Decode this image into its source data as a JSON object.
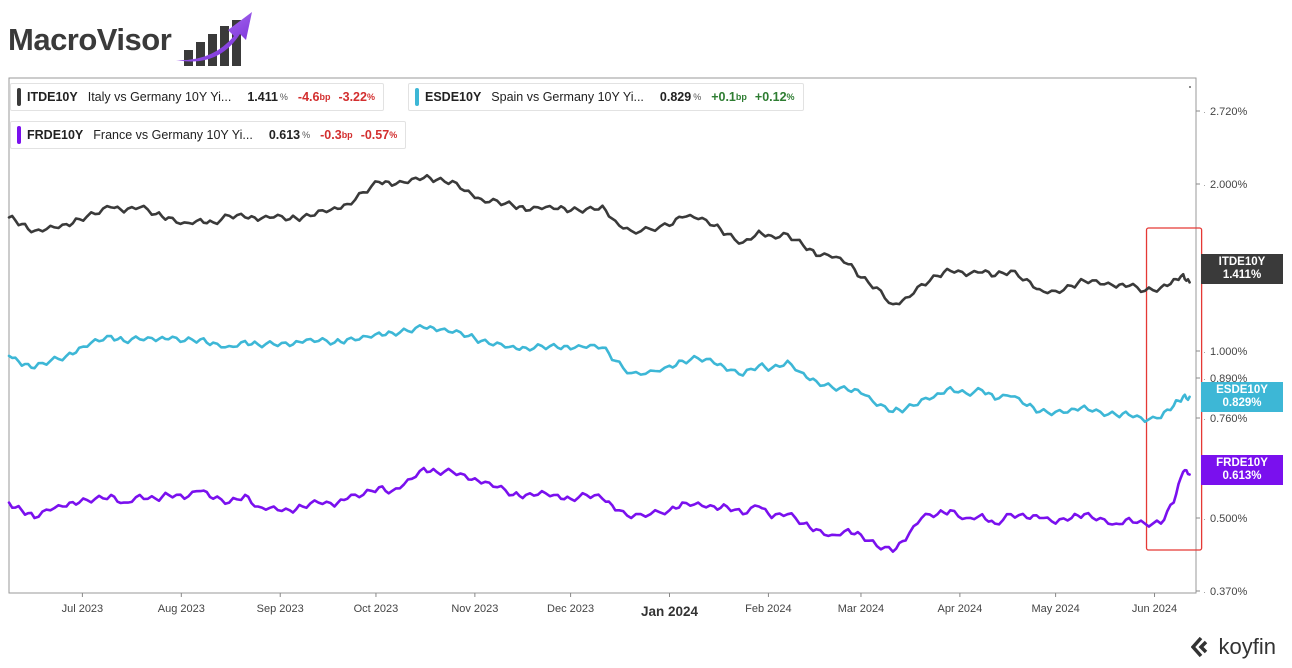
{
  "brand": {
    "name": "MacroVisor",
    "footer": "koyfin"
  },
  "colors": {
    "italy": "#3a3a3a",
    "spain": "#3db7d6",
    "france": "#7a10ee",
    "highlight": "#e53935"
  },
  "legend": [
    {
      "ticker": "ITDE10Y",
      "name": "Italy vs Germany 10Y Yi...",
      "value": "1.411",
      "unit": "%",
      "chg_bp": "-4.6",
      "bp_unit": "bp",
      "chg_pct": "-3.22",
      "pct_unit": "%",
      "direction": "neg"
    },
    {
      "ticker": "ESDE10Y",
      "name": "Spain vs Germany 10Y Yi...",
      "value": "0.829",
      "unit": "%",
      "chg_bp": "+0.1",
      "bp_unit": "bp",
      "chg_pct": "+0.12",
      "pct_unit": "%",
      "direction": "pos"
    },
    {
      "ticker": "FRDE10Y",
      "name": "France vs Germany 10Y Yi...",
      "value": "0.613",
      "unit": "%",
      "chg_bp": "-0.3",
      "bp_unit": "bp",
      "chg_pct": "-0.57",
      "pct_unit": "%",
      "direction": "neg"
    }
  ],
  "tags": [
    {
      "ticker": "ITDE10Y",
      "value": "1.411%"
    },
    {
      "ticker": "ESDE10Y",
      "value": "0.829%"
    },
    {
      "ticker": "FRDE10Y",
      "value": "0.613%"
    }
  ],
  "chart_data": {
    "type": "line",
    "x_ticks": [
      "Jul 2023",
      "Aug 2023",
      "Sep 2023",
      "Oct 2023",
      "Nov 2023",
      "Dec 2023",
      "Jan 2024",
      "Feb 2024",
      "Mar 2024",
      "Apr 2024",
      "May 2024",
      "Jun 2024"
    ],
    "y_ticks": [
      "2.720%",
      "2.000%",
      "1.000%",
      "0.890%",
      "0.760%",
      "0.500%",
      "0.370%"
    ],
    "y_tick_values": [
      2.72,
      2.0,
      1.0,
      0.89,
      0.76,
      0.5,
      0.37
    ],
    "x_range": [
      "2023-06-08",
      "2024-06-14"
    ],
    "grid": false,
    "legend_position": "top-left",
    "highlight_range": [
      "2024-06-01",
      "2024-06-12"
    ],
    "series": [
      {
        "name": "ITDE10Y",
        "points": [
          [
            "2023-06-08",
            1.8
          ],
          [
            "2023-06-12",
            1.76
          ],
          [
            "2023-06-16",
            1.72
          ],
          [
            "2023-06-21",
            1.75
          ],
          [
            "2023-06-26",
            1.76
          ],
          [
            "2023-06-30",
            1.79
          ],
          [
            "2023-07-05",
            1.82
          ],
          [
            "2023-07-10",
            1.86
          ],
          [
            "2023-07-14",
            1.83
          ],
          [
            "2023-07-19",
            1.86
          ],
          [
            "2023-07-24",
            1.82
          ],
          [
            "2023-07-28",
            1.8
          ],
          [
            "2023-08-02",
            1.77
          ],
          [
            "2023-08-07",
            1.79
          ],
          [
            "2023-08-11",
            1.77
          ],
          [
            "2023-08-16",
            1.81
          ],
          [
            "2023-08-21",
            1.8
          ],
          [
            "2023-08-25",
            1.78
          ],
          [
            "2023-08-30",
            1.8
          ],
          [
            "2023-09-04",
            1.79
          ],
          [
            "2023-09-08",
            1.8
          ],
          [
            "2023-09-13",
            1.84
          ],
          [
            "2023-09-18",
            1.86
          ],
          [
            "2023-09-22",
            1.88
          ],
          [
            "2023-09-27",
            1.95
          ],
          [
            "2023-10-02",
            2.02
          ],
          [
            "2023-10-06",
            1.99
          ],
          [
            "2023-10-11",
            2.01
          ],
          [
            "2023-10-16",
            2.06
          ],
          [
            "2023-10-20",
            2.04
          ],
          [
            "2023-10-25",
            2.03
          ],
          [
            "2023-10-30",
            1.96
          ],
          [
            "2023-11-03",
            1.91
          ],
          [
            "2023-11-08",
            1.9
          ],
          [
            "2023-11-13",
            1.87
          ],
          [
            "2023-11-17",
            1.84
          ],
          [
            "2023-11-22",
            1.85
          ],
          [
            "2023-11-27",
            1.85
          ],
          [
            "2023-12-01",
            1.84
          ],
          [
            "2023-12-06",
            1.85
          ],
          [
            "2023-12-11",
            1.87
          ],
          [
            "2023-12-15",
            1.78
          ],
          [
            "2023-12-20",
            1.72
          ],
          [
            "2023-12-26",
            1.73
          ],
          [
            "2024-01-01",
            1.75
          ],
          [
            "2024-01-05",
            1.8
          ],
          [
            "2024-01-10",
            1.79
          ],
          [
            "2024-01-15",
            1.75
          ],
          [
            "2024-01-19",
            1.7
          ],
          [
            "2024-01-24",
            1.65
          ],
          [
            "2024-01-29",
            1.72
          ],
          [
            "2024-02-02",
            1.69
          ],
          [
            "2024-02-07",
            1.7
          ],
          [
            "2024-02-12",
            1.63
          ],
          [
            "2024-02-16",
            1.57
          ],
          [
            "2024-02-21",
            1.56
          ],
          [
            "2024-02-26",
            1.52
          ],
          [
            "2024-03-01",
            1.44
          ],
          [
            "2024-03-06",
            1.38
          ],
          [
            "2024-03-11",
            1.28
          ],
          [
            "2024-03-15",
            1.32
          ],
          [
            "2024-03-20",
            1.4
          ],
          [
            "2024-03-25",
            1.45
          ],
          [
            "2024-03-29",
            1.48
          ],
          [
            "2024-04-03",
            1.45
          ],
          [
            "2024-04-08",
            1.47
          ],
          [
            "2024-04-12",
            1.45
          ],
          [
            "2024-04-17",
            1.48
          ],
          [
            "2024-04-22",
            1.43
          ],
          [
            "2024-04-26",
            1.37
          ],
          [
            "2024-05-01",
            1.36
          ],
          [
            "2024-05-06",
            1.39
          ],
          [
            "2024-05-10",
            1.42
          ],
          [
            "2024-05-15",
            1.4
          ],
          [
            "2024-05-20",
            1.38
          ],
          [
            "2024-05-24",
            1.39
          ],
          [
            "2024-05-29",
            1.36
          ],
          [
            "2024-06-03",
            1.38
          ],
          [
            "2024-06-07",
            1.43
          ],
          [
            "2024-06-10",
            1.46
          ],
          [
            "2024-06-12",
            1.411
          ]
        ]
      },
      {
        "name": "ESDE10Y",
        "points": [
          [
            "2023-06-08",
            0.98
          ],
          [
            "2023-06-12",
            0.94
          ],
          [
            "2023-06-16",
            0.93
          ],
          [
            "2023-06-21",
            0.96
          ],
          [
            "2023-06-26",
            0.98
          ],
          [
            "2023-06-30",
            1.02
          ],
          [
            "2023-07-05",
            1.07
          ],
          [
            "2023-07-10",
            1.09
          ],
          [
            "2023-07-14",
            1.06
          ],
          [
            "2023-07-19",
            1.07
          ],
          [
            "2023-07-24",
            1.06
          ],
          [
            "2023-07-28",
            1.07
          ],
          [
            "2023-08-02",
            1.06
          ],
          [
            "2023-08-07",
            1.07
          ],
          [
            "2023-08-11",
            1.05
          ],
          [
            "2023-08-16",
            1.03
          ],
          [
            "2023-08-21",
            1.06
          ],
          [
            "2023-08-25",
            1.04
          ],
          [
            "2023-08-30",
            1.04
          ],
          [
            "2023-09-04",
            1.03
          ],
          [
            "2023-09-08",
            1.05
          ],
          [
            "2023-09-13",
            1.06
          ],
          [
            "2023-09-18",
            1.05
          ],
          [
            "2023-09-22",
            1.07
          ],
          [
            "2023-09-27",
            1.09
          ],
          [
            "2023-10-02",
            1.11
          ],
          [
            "2023-10-06",
            1.11
          ],
          [
            "2023-10-11",
            1.12
          ],
          [
            "2023-10-16",
            1.14
          ],
          [
            "2023-10-20",
            1.12
          ],
          [
            "2023-10-25",
            1.11
          ],
          [
            "2023-10-30",
            1.09
          ],
          [
            "2023-11-03",
            1.06
          ],
          [
            "2023-11-08",
            1.05
          ],
          [
            "2023-11-13",
            1.03
          ],
          [
            "2023-11-17",
            1.02
          ],
          [
            "2023-11-22",
            1.03
          ],
          [
            "2023-11-27",
            1.02
          ],
          [
            "2023-12-01",
            1.01
          ],
          [
            "2023-12-06",
            1.02
          ],
          [
            "2023-12-11",
            1.02
          ],
          [
            "2023-12-15",
            0.96
          ],
          [
            "2023-12-20",
            0.91
          ],
          [
            "2023-12-26",
            0.92
          ],
          [
            "2024-01-01",
            0.94
          ],
          [
            "2024-01-05",
            0.96
          ],
          [
            "2024-01-10",
            0.97
          ],
          [
            "2024-01-15",
            0.95
          ],
          [
            "2024-01-19",
            0.92
          ],
          [
            "2024-01-24",
            0.9
          ],
          [
            "2024-01-29",
            0.94
          ],
          [
            "2024-02-02",
            0.93
          ],
          [
            "2024-02-07",
            0.96
          ],
          [
            "2024-02-12",
            0.91
          ],
          [
            "2024-02-16",
            0.88
          ],
          [
            "2024-02-21",
            0.86
          ],
          [
            "2024-02-26",
            0.85
          ],
          [
            "2024-03-01",
            0.84
          ],
          [
            "2024-03-06",
            0.8
          ],
          [
            "2024-03-11",
            0.78
          ],
          [
            "2024-03-15",
            0.79
          ],
          [
            "2024-03-20",
            0.82
          ],
          [
            "2024-03-25",
            0.84
          ],
          [
            "2024-03-29",
            0.86
          ],
          [
            "2024-04-03",
            0.84
          ],
          [
            "2024-04-08",
            0.85
          ],
          [
            "2024-04-12",
            0.82
          ],
          [
            "2024-04-17",
            0.83
          ],
          [
            "2024-04-22",
            0.8
          ],
          [
            "2024-04-26",
            0.78
          ],
          [
            "2024-05-01",
            0.78
          ],
          [
            "2024-05-06",
            0.79
          ],
          [
            "2024-05-10",
            0.8
          ],
          [
            "2024-05-15",
            0.78
          ],
          [
            "2024-05-20",
            0.77
          ],
          [
            "2024-05-24",
            0.77
          ],
          [
            "2024-05-29",
            0.75
          ],
          [
            "2024-06-03",
            0.76
          ],
          [
            "2024-06-07",
            0.8
          ],
          [
            "2024-06-10",
            0.83
          ],
          [
            "2024-06-12",
            0.829
          ]
        ]
      },
      {
        "name": "FRDE10Y",
        "points": [
          [
            "2023-06-08",
            0.54
          ],
          [
            "2023-06-12",
            0.52
          ],
          [
            "2023-06-16",
            0.5
          ],
          [
            "2023-06-21",
            0.52
          ],
          [
            "2023-06-26",
            0.53
          ],
          [
            "2023-06-30",
            0.54
          ],
          [
            "2023-07-05",
            0.55
          ],
          [
            "2023-07-10",
            0.56
          ],
          [
            "2023-07-14",
            0.54
          ],
          [
            "2023-07-19",
            0.56
          ],
          [
            "2023-07-24",
            0.55
          ],
          [
            "2023-07-28",
            0.56
          ],
          [
            "2023-08-02",
            0.55
          ],
          [
            "2023-08-07",
            0.57
          ],
          [
            "2023-08-11",
            0.55
          ],
          [
            "2023-08-16",
            0.54
          ],
          [
            "2023-08-21",
            0.56
          ],
          [
            "2023-08-25",
            0.53
          ],
          [
            "2023-08-30",
            0.53
          ],
          [
            "2023-09-04",
            0.52
          ],
          [
            "2023-09-08",
            0.53
          ],
          [
            "2023-09-13",
            0.54
          ],
          [
            "2023-09-18",
            0.53
          ],
          [
            "2023-09-22",
            0.55
          ],
          [
            "2023-09-27",
            0.56
          ],
          [
            "2023-10-02",
            0.58
          ],
          [
            "2023-10-06",
            0.57
          ],
          [
            "2023-10-11",
            0.6
          ],
          [
            "2023-10-16",
            0.63
          ],
          [
            "2023-10-20",
            0.62
          ],
          [
            "2023-10-25",
            0.62
          ],
          [
            "2023-10-30",
            0.6
          ],
          [
            "2023-11-03",
            0.59
          ],
          [
            "2023-11-08",
            0.58
          ],
          [
            "2023-11-13",
            0.56
          ],
          [
            "2023-11-17",
            0.56
          ],
          [
            "2023-11-22",
            0.57
          ],
          [
            "2023-11-27",
            0.56
          ],
          [
            "2023-12-01",
            0.55
          ],
          [
            "2023-12-06",
            0.56
          ],
          [
            "2023-12-11",
            0.55
          ],
          [
            "2023-12-15",
            0.52
          ],
          [
            "2023-12-20",
            0.5
          ],
          [
            "2023-12-26",
            0.51
          ],
          [
            "2024-01-01",
            0.52
          ],
          [
            "2024-01-05",
            0.54
          ],
          [
            "2024-01-10",
            0.54
          ],
          [
            "2024-01-15",
            0.53
          ],
          [
            "2024-01-19",
            0.53
          ],
          [
            "2024-01-24",
            0.51
          ],
          [
            "2024-01-29",
            0.53
          ],
          [
            "2024-02-02",
            0.5
          ],
          [
            "2024-02-07",
            0.51
          ],
          [
            "2024-02-12",
            0.49
          ],
          [
            "2024-02-16",
            0.48
          ],
          [
            "2024-02-21",
            0.47
          ],
          [
            "2024-02-26",
            0.48
          ],
          [
            "2024-03-01",
            0.47
          ],
          [
            "2024-03-06",
            0.45
          ],
          [
            "2024-03-11",
            0.44
          ],
          [
            "2024-03-15",
            0.46
          ],
          [
            "2024-03-20",
            0.5
          ],
          [
            "2024-03-25",
            0.51
          ],
          [
            "2024-03-29",
            0.52
          ],
          [
            "2024-04-03",
            0.5
          ],
          [
            "2024-04-08",
            0.51
          ],
          [
            "2024-04-12",
            0.49
          ],
          [
            "2024-04-17",
            0.51
          ],
          [
            "2024-04-22",
            0.5
          ],
          [
            "2024-04-26",
            0.5
          ],
          [
            "2024-05-01",
            0.49
          ],
          [
            "2024-05-06",
            0.5
          ],
          [
            "2024-05-10",
            0.51
          ],
          [
            "2024-05-15",
            0.5
          ],
          [
            "2024-05-20",
            0.49
          ],
          [
            "2024-05-24",
            0.5
          ],
          [
            "2024-05-29",
            0.49
          ],
          [
            "2024-06-03",
            0.49
          ],
          [
            "2024-06-07",
            0.54
          ],
          [
            "2024-06-10",
            0.62
          ],
          [
            "2024-06-12",
            0.613
          ]
        ]
      }
    ]
  }
}
